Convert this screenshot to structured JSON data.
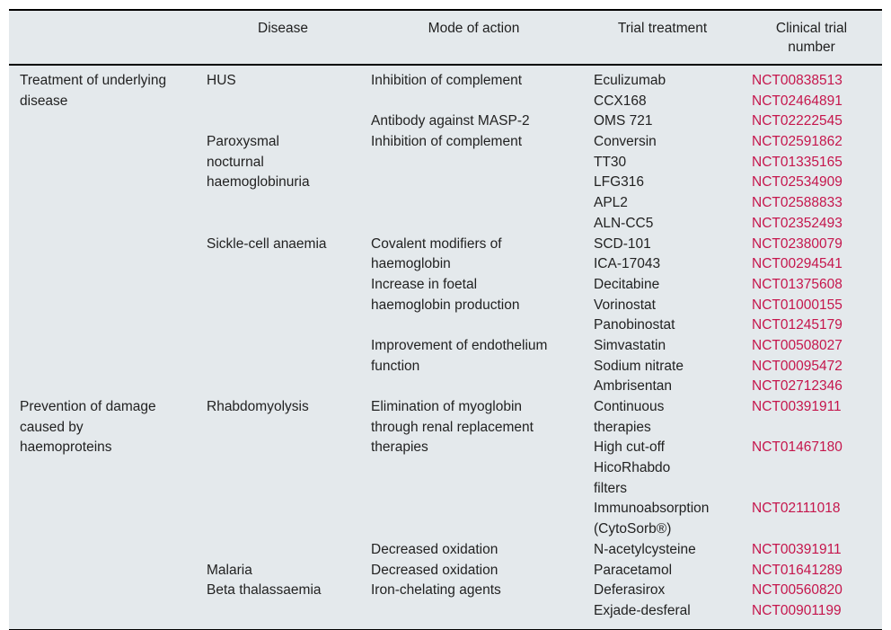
{
  "colors": {
    "table_background": "#e4e9ec",
    "body_text": "#222222",
    "trial_number_link": "#c5164c",
    "rule": "#000000"
  },
  "table": {
    "columns": [
      {
        "label": ""
      },
      {
        "label": "Disease"
      },
      {
        "label": "Mode of action"
      },
      {
        "label": "Trial treatment"
      },
      {
        "label": "Clinical trial number"
      }
    ],
    "row_groups": [
      "Treatment of underlying disease",
      "Prevention of damage caused by haemoproteins"
    ],
    "rows": [
      {
        "cells": [
          "Treatment of underlying",
          "HUS",
          "Inhibition of complement",
          "Eculizumab",
          "NCT00838513"
        ]
      },
      {
        "cells": [
          "disease",
          "",
          "",
          "CCX168",
          "NCT02464891"
        ]
      },
      {
        "cells": [
          "",
          "",
          "Antibody against MASP-2",
          "OMS 721",
          "NCT02222545"
        ]
      },
      {
        "cells": [
          "",
          "Paroxysmal",
          "Inhibition of complement",
          "Conversin",
          "NCT02591862"
        ]
      },
      {
        "cells": [
          "",
          "nocturnal",
          "",
          "TT30",
          "NCT01335165"
        ]
      },
      {
        "cells": [
          "",
          "haemoglobinuria",
          "",
          "LFG316",
          "NCT02534909"
        ]
      },
      {
        "cells": [
          "",
          "",
          "",
          "APL2",
          "NCT02588833"
        ]
      },
      {
        "cells": [
          "",
          "",
          "",
          "ALN-CC5",
          "NCT02352493"
        ]
      },
      {
        "cells": [
          "",
          "Sickle-cell anaemia",
          "Covalent modifiers of",
          "SCD-101",
          "NCT02380079"
        ]
      },
      {
        "cells": [
          "",
          "",
          "haemoglobin",
          "ICA-17043",
          "NCT00294541"
        ]
      },
      {
        "cells": [
          "",
          "",
          "Increase in foetal",
          "Decitabine",
          "NCT01375608"
        ]
      },
      {
        "cells": [
          "",
          "",
          "haemoglobin production",
          "Vorinostat",
          "NCT01000155"
        ]
      },
      {
        "cells": [
          "",
          "",
          "",
          "Panobinostat",
          "NCT01245179"
        ]
      },
      {
        "cells": [
          "",
          "",
          "Improvement of endothelium",
          "Simvastatin",
          "NCT00508027"
        ]
      },
      {
        "cells": [
          "",
          "",
          "function",
          "Sodium nitrate",
          "NCT00095472"
        ]
      },
      {
        "cells": [
          "",
          "",
          "",
          "Ambrisentan",
          "NCT02712346"
        ]
      },
      {
        "cells": [
          "Prevention of damage",
          "Rhabdomyolysis",
          "Elimination of myoglobin",
          "Continuous",
          "NCT00391911"
        ]
      },
      {
        "cells": [
          "caused by",
          "",
          "through renal replacement",
          "therapies",
          ""
        ]
      },
      {
        "cells": [
          "haemoproteins",
          "",
          "therapies",
          "High cut-off",
          "NCT01467180"
        ]
      },
      {
        "cells": [
          "",
          "",
          "",
          "HicoRhabdo",
          ""
        ]
      },
      {
        "cells": [
          "",
          "",
          "",
          "filters",
          ""
        ]
      },
      {
        "cells": [
          "",
          "",
          "",
          "Immunoabsorption",
          "NCT02111018"
        ]
      },
      {
        "cells": [
          "",
          "",
          "",
          "(CytoSorb®)",
          ""
        ]
      },
      {
        "cells": [
          "",
          "",
          "Decreased oxidation",
          "N-acetylcysteine",
          "NCT00391911"
        ]
      },
      {
        "cells": [
          "",
          "Malaria",
          "Decreased oxidation",
          "Paracetamol",
          "NCT01641289"
        ]
      },
      {
        "cells": [
          "",
          "Beta thalassaemia",
          "Iron-chelating agents",
          "Deferasirox",
          "NCT00560820"
        ]
      },
      {
        "cells": [
          "",
          "",
          "",
          "Exjade-desferal",
          "NCT00901199"
        ]
      }
    ]
  }
}
